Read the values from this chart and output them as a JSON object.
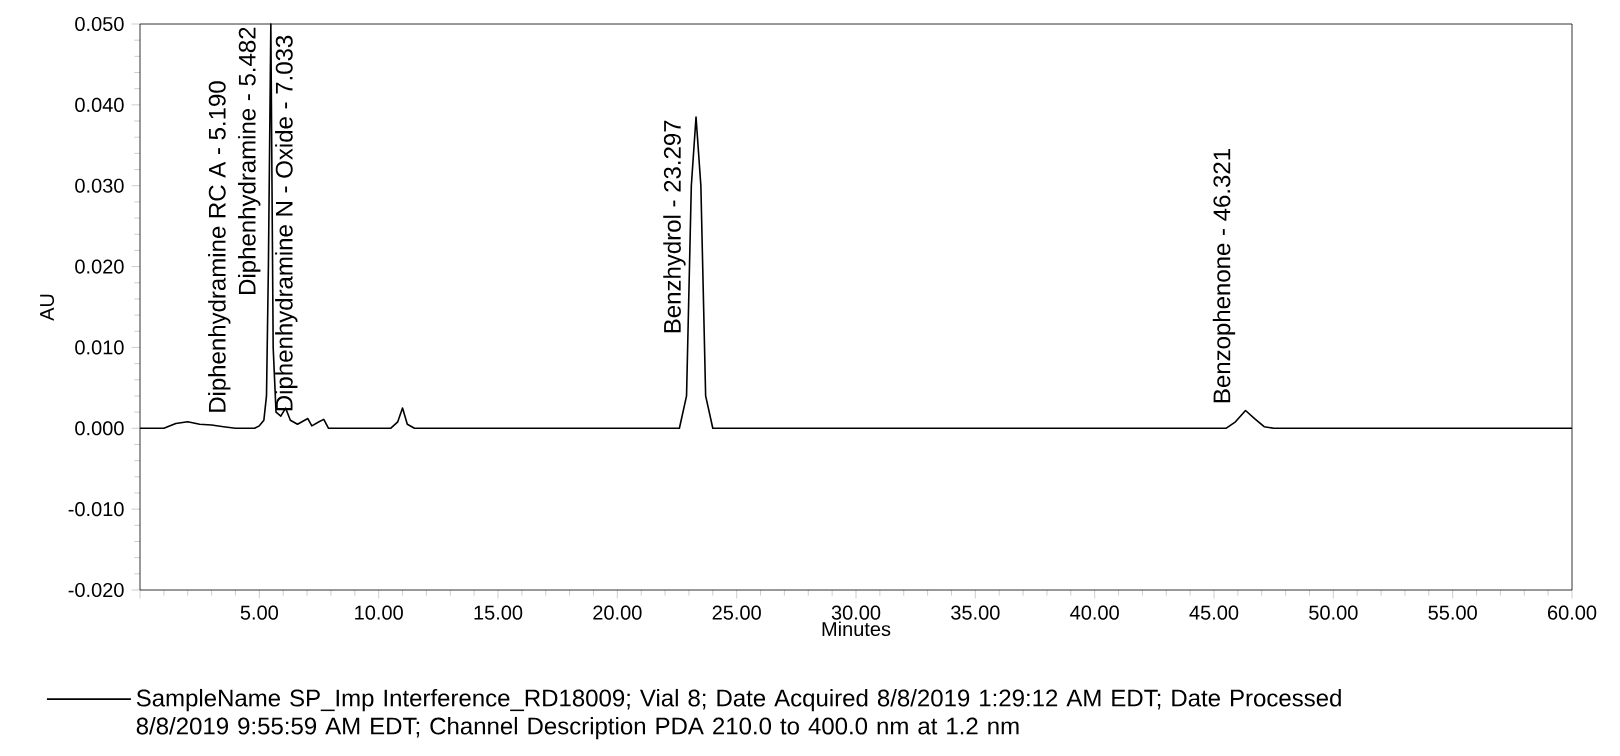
{
  "chart_data": {
    "type": "line",
    "xlabel": "Minutes",
    "ylabel": "AU",
    "xlim": [
      0,
      60
    ],
    "ylim": [
      -0.02,
      0.05
    ],
    "xticks": [
      {
        "value": 0,
        "label": null
      },
      {
        "value": 5,
        "label": "5.00"
      },
      {
        "value": 10,
        "label": "10.00"
      },
      {
        "value": 15,
        "label": "15.00"
      },
      {
        "value": 20,
        "label": "20.00"
      },
      {
        "value": 25,
        "label": "25.00"
      },
      {
        "value": 30,
        "label": "30.00"
      },
      {
        "value": 35,
        "label": "35.00"
      },
      {
        "value": 40,
        "label": "40.00"
      },
      {
        "value": 45,
        "label": "45.00"
      },
      {
        "value": 50,
        "label": "50.00"
      },
      {
        "value": 55,
        "label": "55.00"
      },
      {
        "value": 60,
        "label": "60.00"
      }
    ],
    "yticks": [
      {
        "value": -0.02,
        "label": "-0.020"
      },
      {
        "value": -0.01,
        "label": "-0.010"
      },
      {
        "value": 0,
        "label": "0.000"
      },
      {
        "value": 0.01,
        "label": "0.010"
      },
      {
        "value": 0.02,
        "label": "0.020"
      },
      {
        "value": 0.03,
        "label": "0.030"
      },
      {
        "value": 0.04,
        "label": "0.040"
      },
      {
        "value": 0.05,
        "label": "0.050"
      }
    ],
    "legend": "bottom",
    "grid": false,
    "marker": "none",
    "line_style": "solid",
    "series": [
      {
        "name": "SampleName SP_Imp Interference_RD18009; Vial 8; Date Acquired 8/8/2019 1:29:12 AM EDT; Date Processed 8/8/2019 9:55:59 AM EDT; Channel Description PDA 210.0 to 400.0 nm at 1.2 nm",
        "color": "#000000",
        "x": [
          0,
          1.0,
          1.5,
          2.0,
          2.5,
          3.0,
          3.5,
          4.0,
          4.8,
          5.0,
          5.19,
          5.3,
          5.38,
          5.482,
          5.58,
          5.7,
          5.9,
          6.1,
          6.3,
          6.6,
          6.9,
          7.033,
          7.2,
          7.5,
          7.7,
          7.9,
          8.2,
          9,
          10.5,
          10.8,
          11.0,
          11.2,
          11.5,
          13,
          16,
          20,
          22.6,
          22.9,
          23.1,
          23.297,
          23.5,
          23.7,
          24,
          25,
          30,
          35,
          40,
          45,
          45.5,
          45.9,
          46.321,
          46.7,
          47.1,
          47.5,
          50,
          55,
          60
        ],
        "values": [
          0,
          0,
          0.0006,
          0.0008,
          0.0005,
          0.0004,
          0.0002,
          0,
          0,
          0.0003,
          0.001,
          0.004,
          0.02,
          0.05,
          0.01,
          0.002,
          0.0015,
          0.0025,
          0.001,
          0.0005,
          0.001,
          0.0012,
          0.0003,
          0.0008,
          0.0011,
          0,
          0,
          0,
          0,
          0.0008,
          0.0025,
          0.0005,
          0,
          0,
          0,
          0,
          0,
          0.004,
          0.03,
          0.0385,
          0.03,
          0.004,
          0,
          0,
          0,
          0,
          0,
          0,
          0,
          0.0008,
          0.0022,
          0.0012,
          0.0002,
          0,
          0,
          0,
          0
        ]
      }
    ],
    "annotations": [
      {
        "text": "Diphenhydramine RC A - 5.190",
        "x": 5.19,
        "y": 0.001
      },
      {
        "text": "Diphenhydramine - 5.482",
        "x": 5.482,
        "y": 0.05
      },
      {
        "text": "Diphenhydramine N - Oxide - 7.033",
        "x": 7.033,
        "y": 0.0012
      },
      {
        "text": "Benzhydrol - 23.297",
        "x": 23.297,
        "y": 0.0385
      },
      {
        "text": "Benzophenone - 46.321",
        "x": 46.321,
        "y": 0.0022
      }
    ]
  }
}
